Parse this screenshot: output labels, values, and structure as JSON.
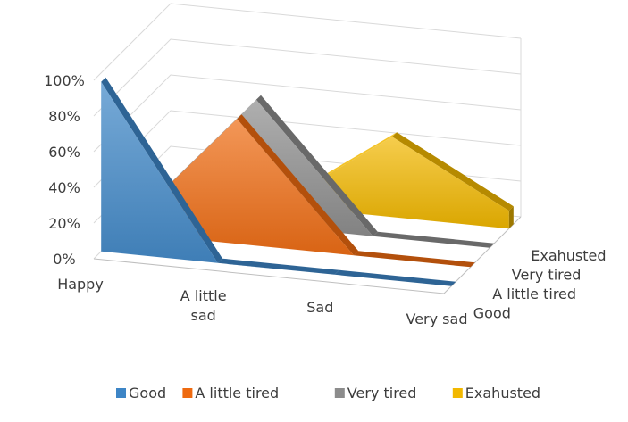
{
  "chart_data": {
    "type": "area",
    "subtype": "3d-area",
    "categories": [
      "Happy",
      "A little sad",
      "Sad",
      "Very sad"
    ],
    "series": [
      {
        "name": "Good",
        "color": "#3d85c6",
        "values": [
          95,
          0,
          0,
          0
        ]
      },
      {
        "name": "A little tired",
        "color": "#ee6a10",
        "values": [
          0,
          70,
          0,
          0
        ]
      },
      {
        "name": "Very tired",
        "color": "#8c8c8c",
        "values": [
          0,
          70,
          0,
          0
        ]
      },
      {
        "name": "Exahusted",
        "color": "#f2b800",
        "values": [
          0,
          0,
          45,
          10
        ]
      }
    ],
    "y_ticks": [
      "0%",
      "20%",
      "40%",
      "60%",
      "80%",
      "100%"
    ],
    "ylim": [
      0,
      100
    ],
    "legend_position": "bottom",
    "grid": true
  }
}
